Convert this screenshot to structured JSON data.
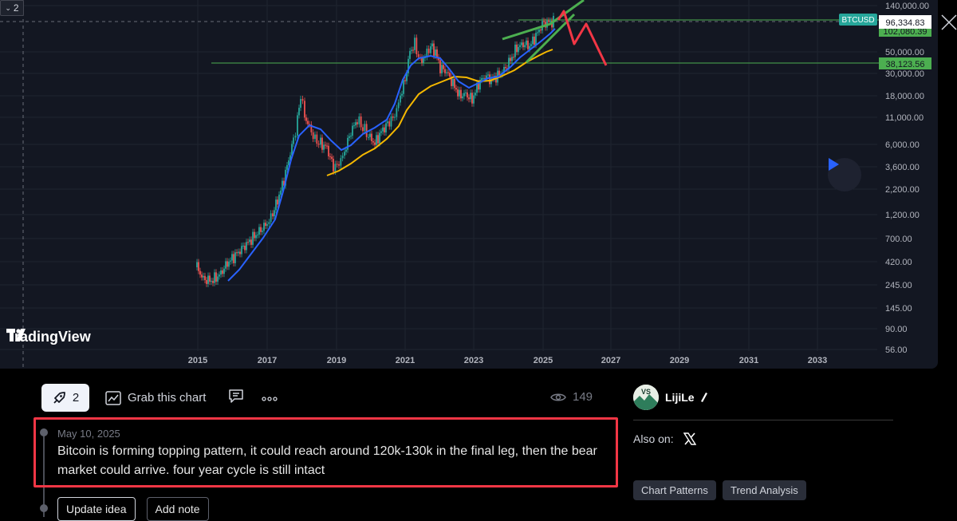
{
  "chart": {
    "collapse_count": "2",
    "symbol": "BTCUSD",
    "price_labels": {
      "current": "96,334.83",
      "upper_green": "102,080.39",
      "support": "38,123.56"
    },
    "y_ticks": [
      "140,000.00",
      "50,000.00",
      "30,000.00",
      "18,000.00",
      "11,000.00",
      "6,000.00",
      "3,600.00",
      "2,200.00",
      "1,200.00",
      "700.00",
      "420.00",
      "245.00",
      "145.00",
      "90.00",
      "56.00"
    ],
    "x_ticks": [
      "2015",
      "2017",
      "2019",
      "2021",
      "2023",
      "2025",
      "2027",
      "2029",
      "2031",
      "2033"
    ],
    "brand": "TradingView",
    "colors": {
      "background": "#131722",
      "candle_up": "#26a69a",
      "candle_down": "#ef5350",
      "ma_blue": "#2962ff",
      "ma_yellow": "#f5b800",
      "trend_green": "#4caf50",
      "projection_red": "#f23645",
      "support_green": "#4caf50",
      "symbol_label": "#26a69a"
    }
  },
  "toolbar": {
    "boost_count": "2",
    "grab_label": "Grab this chart",
    "views": "149"
  },
  "author": {
    "name": "LijiLe",
    "avatar_text": "VS"
  },
  "also_on": {
    "label": "Also on:"
  },
  "tags": [
    "Chart Patterns",
    "Trend Analysis"
  ],
  "update": {
    "date": "May 10, 2025",
    "text": "Bitcoin is forming topping pattern, it could reach around 120k-130k in the final leg, then the bear market could arrive. four year cycle is still intact"
  },
  "buttons": {
    "update_idea": "Update idea",
    "add_note": "Add note"
  }
}
